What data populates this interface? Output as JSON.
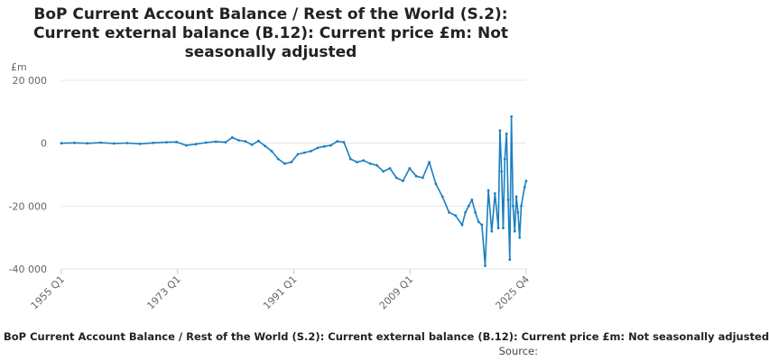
{
  "chart_data": {
    "type": "line",
    "title": "BoP Current Account Balance / Rest of the World (S.2): Current external balance (B.12): Current price £m: Not seasonally adjusted",
    "yunit": "£m",
    "ylim": [
      -40000,
      20000
    ],
    "yticks": [
      {
        "value": 20000,
        "label": "20 000"
      },
      {
        "value": 0,
        "label": "0"
      },
      {
        "value": -20000,
        "label": "-20 000"
      },
      {
        "value": -40000,
        "label": "-40 000"
      }
    ],
    "xticks": [
      "1955 Q1",
      "1973 Q1",
      "1991 Q1",
      "2009 Q1",
      "2025 Q4"
    ],
    "xlim": [
      1955.0,
      2025.75
    ],
    "grid": true,
    "line_color": "#1a7fc1",
    "series": [
      {
        "name": "BoP Current Account Balance / Rest of the World (S.2): Current external balance (B.12): Current price £m: Not seasonally adjusted",
        "points": [
          [
            1955.0,
            0
          ],
          [
            1957.0,
            100
          ],
          [
            1959.0,
            -50
          ],
          [
            1961.0,
            150
          ],
          [
            1963.0,
            -100
          ],
          [
            1965.0,
            50
          ],
          [
            1967.0,
            -200
          ],
          [
            1969.0,
            100
          ],
          [
            1971.0,
            300
          ],
          [
            1972.5,
            400
          ],
          [
            1974.0,
            -700
          ],
          [
            1975.5,
            -300
          ],
          [
            1977.0,
            200
          ],
          [
            1978.5,
            500
          ],
          [
            1980.0,
            300
          ],
          [
            1981.0,
            1800
          ],
          [
            1982.0,
            900
          ],
          [
            1983.0,
            600
          ],
          [
            1984.0,
            -500
          ],
          [
            1985.0,
            700
          ],
          [
            1986.0,
            -900
          ],
          [
            1987.0,
            -2500
          ],
          [
            1988.0,
            -5000
          ],
          [
            1989.0,
            -6500
          ],
          [
            1990.0,
            -6000
          ],
          [
            1991.0,
            -3500
          ],
          [
            1992.0,
            -3000
          ],
          [
            1993.0,
            -2500
          ],
          [
            1994.0,
            -1500
          ],
          [
            1995.0,
            -1000
          ],
          [
            1996.0,
            -700
          ],
          [
            1997.0,
            600
          ],
          [
            1998.0,
            300
          ],
          [
            1999.0,
            -5000
          ],
          [
            2000.0,
            -6000
          ],
          [
            2001.0,
            -5500
          ],
          [
            2002.0,
            -6500
          ],
          [
            2003.0,
            -7000
          ],
          [
            2004.0,
            -9000
          ],
          [
            2005.0,
            -8000
          ],
          [
            2006.0,
            -11000
          ],
          [
            2007.0,
            -12000
          ],
          [
            2008.0,
            -8000
          ],
          [
            2009.0,
            -10500
          ],
          [
            2010.0,
            -11000
          ],
          [
            2011.0,
            -6000
          ],
          [
            2012.0,
            -13000
          ],
          [
            2013.0,
            -17000
          ],
          [
            2014.0,
            -22000
          ],
          [
            2015.0,
            -23000
          ],
          [
            2016.0,
            -26000
          ],
          [
            2016.5,
            -22000
          ],
          [
            2017.0,
            -20000
          ],
          [
            2017.5,
            -18000
          ],
          [
            2018.0,
            -22000
          ],
          [
            2018.5,
            -25000
          ],
          [
            2019.0,
            -26000
          ],
          [
            2019.5,
            -39000
          ],
          [
            2020.0,
            -15000
          ],
          [
            2020.5,
            -28000
          ],
          [
            2021.0,
            -16000
          ],
          [
            2021.5,
            -27000
          ],
          [
            2021.75,
            4000
          ],
          [
            2022.0,
            -9000
          ],
          [
            2022.25,
            -27000
          ],
          [
            2022.5,
            -5000
          ],
          [
            2022.75,
            3000
          ],
          [
            2023.0,
            -18000
          ],
          [
            2023.25,
            -37000
          ],
          [
            2023.5,
            8500
          ],
          [
            2023.75,
            -20000
          ],
          [
            2024.0,
            -28000
          ],
          [
            2024.25,
            -17000
          ],
          [
            2024.5,
            -22000
          ],
          [
            2024.75,
            -30000
          ],
          [
            2025.0,
            -20000
          ],
          [
            2025.5,
            -14000
          ],
          [
            2025.75,
            -12000
          ]
        ]
      }
    ]
  },
  "footer": {
    "series_label": "BoP Current Account Balance / Rest of the World (S.2): Current external balance (B.12): Current price £m: Not seasonally adjusted",
    "source_label": "Source:"
  }
}
